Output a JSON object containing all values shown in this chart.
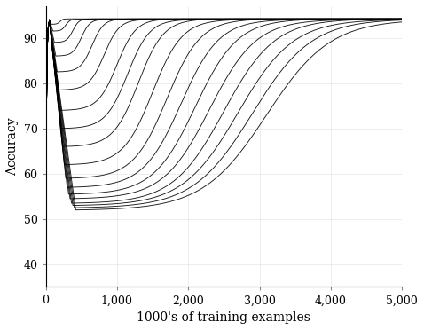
{
  "xlabel": "1000's of training examples",
  "ylabel": "Accuracy",
  "xlim": [
    0,
    5000
  ],
  "ylim": [
    35,
    97
  ],
  "yticks": [
    40,
    50,
    60,
    70,
    80,
    90
  ],
  "xticks": [
    0,
    1000,
    2000,
    3000,
    4000,
    5000
  ],
  "xtick_labels": [
    "0",
    "1,000",
    "2,000",
    "3,000",
    "4,000",
    "5,000"
  ],
  "line_color": "#000000",
  "background_color": "#ffffff",
  "curves": [
    {
      "peak": 94.0,
      "dip_x": 80,
      "dip_y": 93.0,
      "recover_x": 200,
      "final": 94.2
    },
    {
      "peak": 94.0,
      "dip_x": 100,
      "dip_y": 91.5,
      "recover_x": 280,
      "final": 94.1
    },
    {
      "peak": 94.0,
      "dip_x": 120,
      "dip_y": 89.0,
      "recover_x": 380,
      "final": 94.2
    },
    {
      "peak": 94.0,
      "dip_x": 140,
      "dip_y": 86.0,
      "recover_x": 500,
      "final": 94.1
    },
    {
      "peak": 94.0,
      "dip_x": 160,
      "dip_y": 82.5,
      "recover_x": 650,
      "final": 94.2
    },
    {
      "peak": 94.0,
      "dip_x": 180,
      "dip_y": 78.5,
      "recover_x": 820,
      "final": 94.1
    },
    {
      "peak": 94.0,
      "dip_x": 200,
      "dip_y": 74.0,
      "recover_x": 1000,
      "final": 94.2
    },
    {
      "peak": 94.0,
      "dip_x": 220,
      "dip_y": 70.0,
      "recover_x": 1150,
      "final": 94.1
    },
    {
      "peak": 94.0,
      "dip_x": 240,
      "dip_y": 66.0,
      "recover_x": 1300,
      "final": 94.2
    },
    {
      "peak": 94.0,
      "dip_x": 260,
      "dip_y": 62.0,
      "recover_x": 1500,
      "final": 94.1
    },
    {
      "peak": 94.0,
      "dip_x": 280,
      "dip_y": 59.0,
      "recover_x": 1700,
      "final": 94.2
    },
    {
      "peak": 94.0,
      "dip_x": 300,
      "dip_y": 57.0,
      "recover_x": 1900,
      "final": 94.1
    },
    {
      "peak": 94.0,
      "dip_x": 320,
      "dip_y": 55.5,
      "recover_x": 2100,
      "final": 94.2
    },
    {
      "peak": 94.0,
      "dip_x": 340,
      "dip_y": 54.5,
      "recover_x": 2300,
      "final": 94.1
    },
    {
      "peak": 94.0,
      "dip_x": 360,
      "dip_y": 53.5,
      "recover_x": 2500,
      "final": 94.2
    },
    {
      "peak": 94.0,
      "dip_x": 380,
      "dip_y": 53.0,
      "recover_x": 2700,
      "final": 94.1
    },
    {
      "peak": 94.0,
      "dip_x": 400,
      "dip_y": 52.5,
      "recover_x": 2900,
      "final": 94.2
    },
    {
      "peak": 94.0,
      "dip_x": 420,
      "dip_y": 52.0,
      "recover_x": 3100,
      "final": 94.1
    }
  ]
}
